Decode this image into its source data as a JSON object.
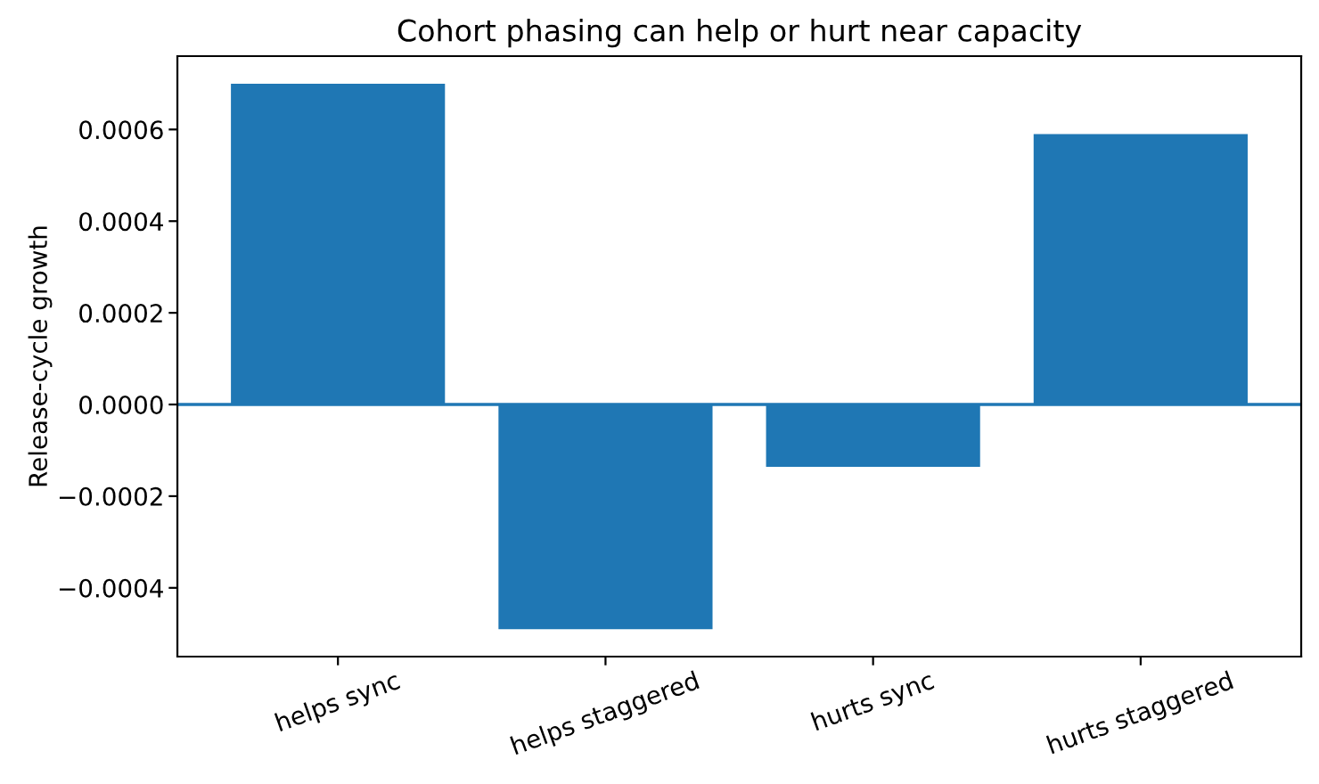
{
  "chart_data": {
    "type": "bar",
    "title": "Cohort phasing can help or hurt near capacity",
    "ylabel": "Release-cycle growth",
    "categories": [
      "helps sync",
      "helps staggered",
      "hurts sync",
      "hurts staggered"
    ],
    "values": [
      0.0007,
      -0.00049,
      -0.000136,
      0.00059
    ],
    "color": "#1f77b4",
    "ylim": [
      -0.00055,
      0.00076
    ],
    "yticks": [
      {
        "value": -0.0004,
        "label": "−0.0004"
      },
      {
        "value": -0.0002,
        "label": "−0.0002"
      },
      {
        "value": 0,
        "label": "0.0000"
      },
      {
        "value": 0.0002,
        "label": "0.0002"
      },
      {
        "value": 0.0004,
        "label": "0.0004"
      },
      {
        "value": 0.0006,
        "label": "0.0006"
      }
    ],
    "ref_lines": [
      {
        "axis": "y",
        "value": 0,
        "color": "#1f77b4",
        "line_style": "solid"
      }
    ],
    "grid": false
  }
}
